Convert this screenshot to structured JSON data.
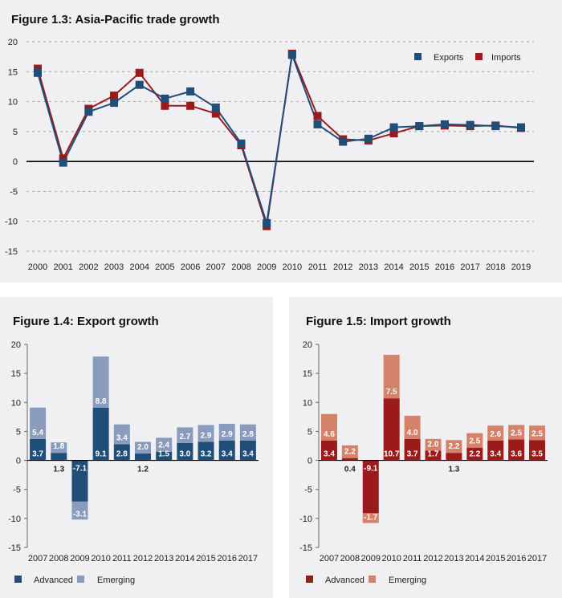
{
  "figures": {
    "fig13": {
      "title": "Figure 1.3: Asia-Pacific trade growth"
    },
    "fig14": {
      "title": "Figure 1.4: Export growth"
    },
    "fig15": {
      "title": "Figure 1.5: Import growth"
    }
  },
  "colors": {
    "exports": "#1f4e79",
    "imports": "#9b1b1b",
    "advanced_export": "#1f4e79",
    "emerging_export": "#8a9cbd",
    "advanced_import": "#9b1b1b",
    "emerging_import": "#d4826a"
  },
  "chart_data": [
    {
      "id": "fig13",
      "type": "line",
      "title": "Figure 1.3: Asia-Pacific trade growth",
      "xlabel": "",
      "ylabel": "",
      "ylim": [
        -15,
        20
      ],
      "yticks": [
        "20",
        "15",
        "10",
        "5",
        "0",
        "-5",
        "-10",
        "-15"
      ],
      "x": [
        "2000",
        "2001",
        "2002",
        "2003",
        "2004",
        "2005",
        "2006",
        "2007",
        "2008",
        "2009",
        "2010",
        "2011",
        "2012",
        "2013",
        "2014",
        "2015",
        "2016",
        "2017",
        "2018",
        "2019"
      ],
      "legend_position": "top-right",
      "series": [
        {
          "name": "Exports",
          "values": [
            14.8,
            -0.2,
            8.3,
            9.8,
            12.8,
            10.5,
            11.7,
            9.0,
            3.0,
            -10.3,
            17.8,
            6.2,
            3.3,
            3.8,
            5.7,
            5.9,
            6.2,
            6.1,
            5.9,
            5.7
          ]
        },
        {
          "name": "Imports",
          "values": [
            15.5,
            0.5,
            8.8,
            11.0,
            14.8,
            9.3,
            9.3,
            8.0,
            2.7,
            -10.8,
            18.0,
            7.6,
            3.7,
            3.5,
            4.7,
            5.9,
            6.0,
            5.9,
            6.0,
            5.6
          ]
        }
      ]
    },
    {
      "id": "fig14",
      "type": "bar",
      "stacked": true,
      "title": "Figure 1.4: Export growth",
      "xlabel": "",
      "ylabel": "",
      "ylim": [
        -15,
        20
      ],
      "yticks": [
        "20",
        "15",
        "10",
        "5",
        "0",
        "-5",
        "-10",
        "-15"
      ],
      "categories": [
        "2007",
        "2008",
        "2009",
        "2010",
        "2011",
        "2012",
        "2013",
        "2014",
        "2015",
        "2016",
        "2017"
      ],
      "legend_position": "bottom-left",
      "series": [
        {
          "name": "Advanced",
          "values": [
            3.7,
            1.3,
            -7.1,
            9.1,
            2.8,
            1.2,
            1.5,
            3.0,
            3.2,
            3.4,
            3.4
          ],
          "labels": [
            "3.7",
            "1.3",
            "-7.1",
            "9.1",
            "2.8",
            "1.2",
            "1.5",
            "3.0",
            "3.2",
            "3.4",
            "3.4"
          ]
        },
        {
          "name": "Emerging",
          "values": [
            5.4,
            1.8,
            -3.1,
            8.8,
            3.4,
            2.0,
            2.4,
            2.7,
            2.9,
            2.9,
            2.8
          ],
          "labels": [
            "5.4",
            "1.8",
            "-3.1",
            "8.8",
            "3.4",
            "2.0",
            "2.4",
            "2.7",
            "2.9",
            "2.9",
            "2.8"
          ]
        }
      ]
    },
    {
      "id": "fig15",
      "type": "bar",
      "stacked": true,
      "title": "Figure 1.5: Import growth",
      "xlabel": "",
      "ylabel": "",
      "ylim": [
        -15,
        20
      ],
      "yticks": [
        "20",
        "15",
        "10",
        "5",
        "0",
        "-5",
        "-10",
        "-15"
      ],
      "categories": [
        "2007",
        "2008",
        "2009",
        "2010",
        "2011",
        "2012",
        "2013",
        "2014",
        "2015",
        "2016",
        "2017"
      ],
      "legend_position": "bottom-left",
      "series": [
        {
          "name": "Advanced",
          "values": [
            3.4,
            0.4,
            -9.1,
            10.7,
            3.7,
            1.7,
            1.3,
            2.2,
            3.4,
            3.6,
            3.5
          ],
          "labels": [
            "3.4",
            "0.4",
            "-9.1",
            "10.7",
            "3.7",
            "1.7",
            "1.3",
            "2.2",
            "3.4",
            "3.6",
            "3.5"
          ]
        },
        {
          "name": "Emerging",
          "values": [
            4.6,
            2.2,
            -1.7,
            7.5,
            4.0,
            2.0,
            2.2,
            2.5,
            2.6,
            2.5,
            2.5
          ],
          "labels": [
            "4.6",
            "2.2",
            "-1.7",
            "7.5",
            "4.0",
            "2.0",
            "2.2",
            "2.5",
            "2.6",
            "2.5",
            "2.5"
          ]
        }
      ]
    }
  ]
}
